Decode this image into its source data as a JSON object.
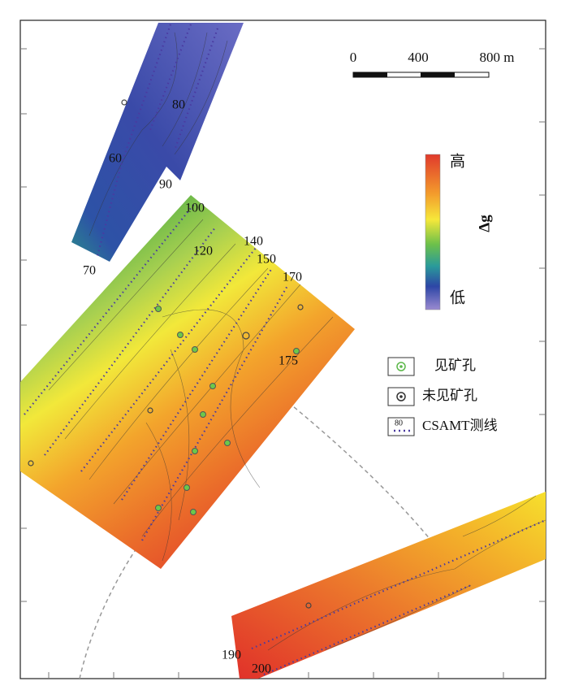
{
  "scale_bar": {
    "labels": [
      "0",
      "400",
      "800 m"
    ]
  },
  "colorbar": {
    "high": "高",
    "low": "低",
    "label": "Δg"
  },
  "line_labels": [
    "60",
    "70",
    "80",
    "90",
    "100",
    "120",
    "140",
    "150",
    "170",
    "175",
    "190",
    "200"
  ],
  "legend": {
    "items": [
      "见矿孔",
      "未见矿孔",
      "CSAMT测线"
    ],
    "icon_label": "80"
  }
}
